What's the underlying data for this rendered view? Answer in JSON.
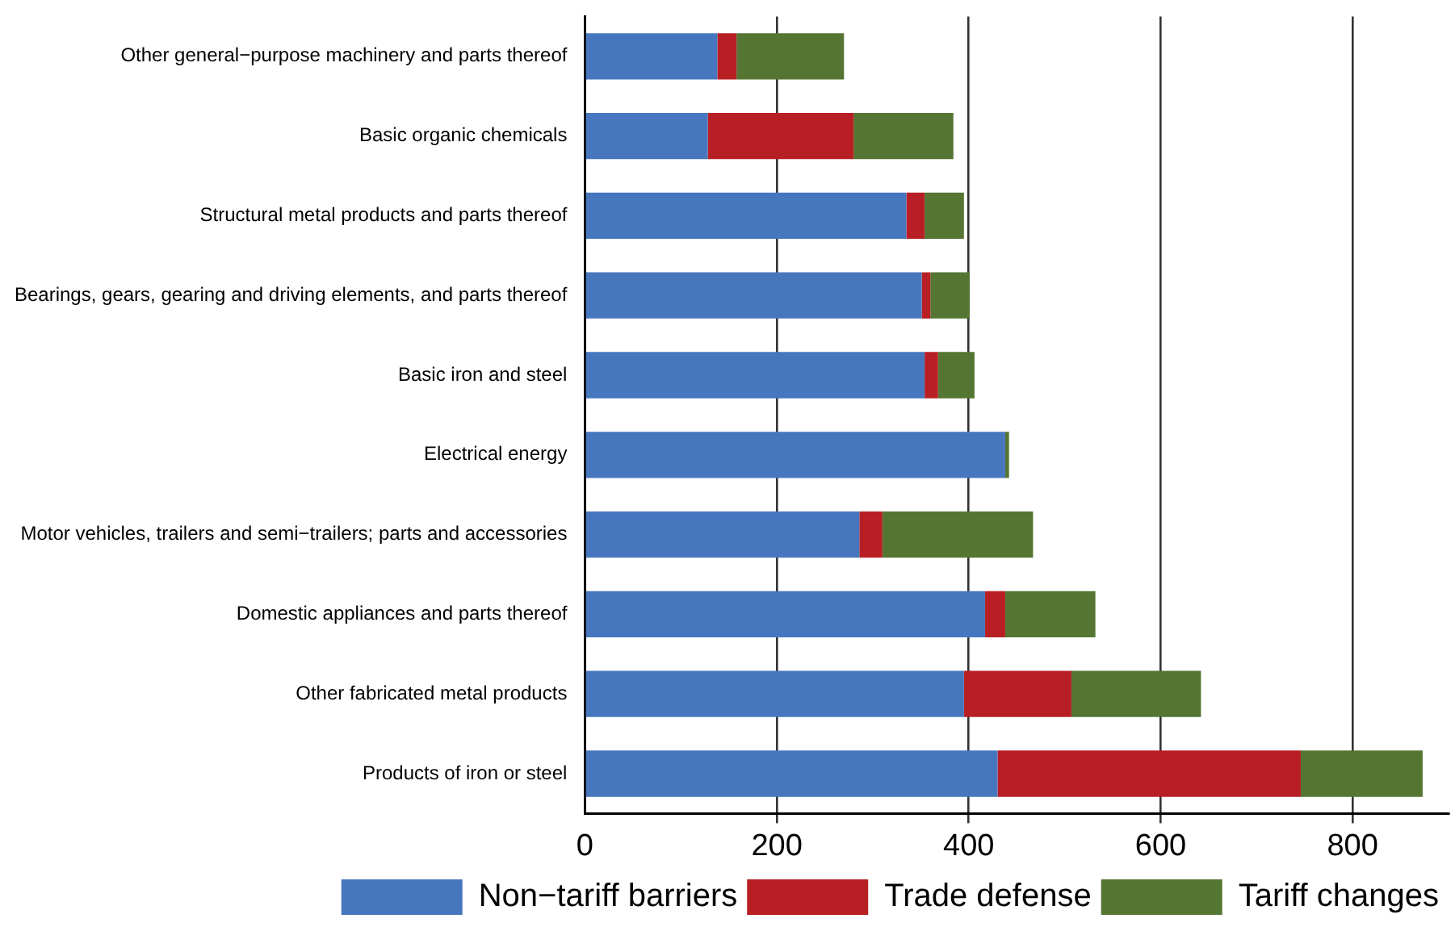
{
  "chart_data": {
    "type": "bar",
    "orientation": "horizontal",
    "stacked": true,
    "categories": [
      "Other general−purpose machinery and parts thereof",
      "Basic organic chemicals",
      "Structural metal products and parts thereof",
      "Bearings, gears, gearing and driving elements, and parts thereof",
      "Basic iron and steel",
      "Electrical energy",
      "Motor vehicles, trailers and semi−trailers; parts and accessories",
      "Domestic appliances and parts thereof",
      "Other fabricated metal products",
      "Products of iron or steel"
    ],
    "series": [
      {
        "name": "Non−tariff barriers",
        "color": "#4677be",
        "values": [
          138,
          128,
          335,
          351,
          354,
          438,
          286,
          417,
          395,
          430
        ]
      },
      {
        "name": "Trade defense",
        "color": "#b81f24",
        "values": [
          20,
          152,
          19,
          9,
          14,
          0,
          24,
          21,
          112,
          316
        ]
      },
      {
        "name": "Tariff changes",
        "color": "#557533",
        "values": [
          112,
          104,
          41,
          41,
          38,
          4,
          157,
          94,
          135,
          127
        ]
      }
    ],
    "xlim": [
      0,
      900
    ],
    "xticks": [
      0,
      200,
      400,
      600,
      800
    ],
    "grid": "x",
    "legend": "bottom"
  }
}
